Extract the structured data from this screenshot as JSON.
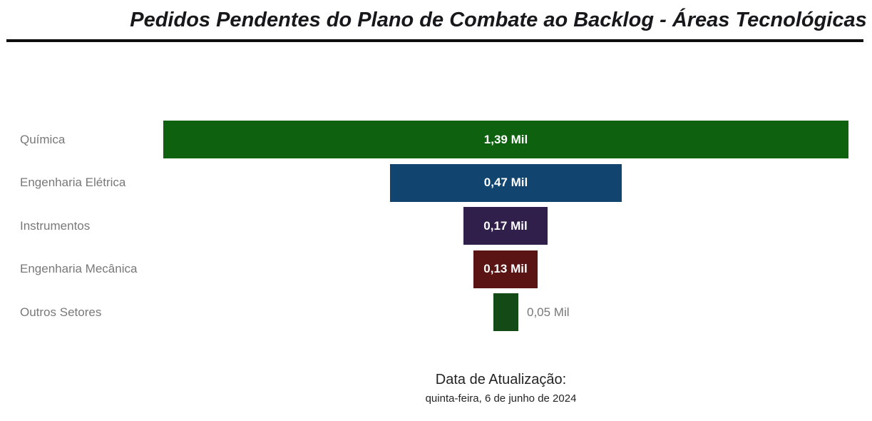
{
  "title": "Pedidos Pendentes do Plano de Combate ao Backlog - Áreas Tecnológicas",
  "chart_data": {
    "type": "funnel",
    "orientation": "horizontal-centered",
    "categories": [
      "Química",
      "Engenharia Elétrica",
      "Instrumentos",
      "Engenharia Mecânica",
      "Outros Setores"
    ],
    "values": [
      1.39,
      0.47,
      0.17,
      0.13,
      0.05
    ],
    "labels": [
      "1,39 Mil",
      "0,47 Mil",
      "0,17 Mil",
      "0,13 Mil",
      "0,05 Mil"
    ],
    "colors": [
      "#0e610e",
      "#114570",
      "#2f1f4a",
      "#5a1414",
      "#144a15"
    ],
    "unit": "Mil",
    "max_value": 1.39,
    "legend_position": "none",
    "gridlines": false
  },
  "footer": {
    "label": "Data de Atualização:",
    "date": "quinta-feira, 6 de junho de 2024"
  },
  "style_colors": {
    "background": "#ffffff",
    "title_text": "#17171c",
    "divider": "#0d0d0d",
    "category_label": "#787878",
    "value_label_inside": "#ffffff",
    "value_label_outside": "#777777",
    "footer_text": "#252423"
  }
}
